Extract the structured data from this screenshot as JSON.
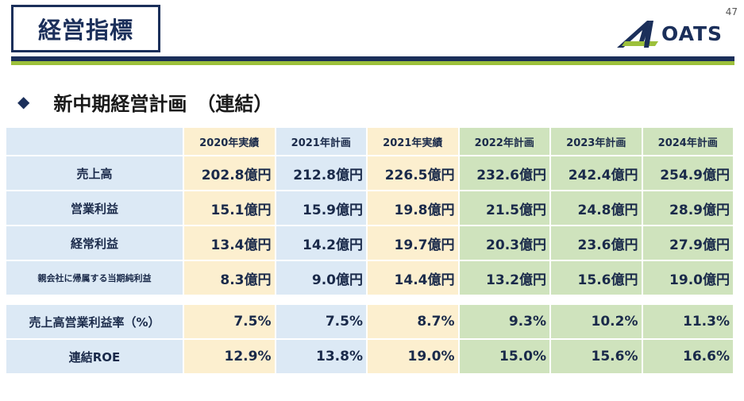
{
  "header": {
    "title": "経営指標",
    "page_number": "47",
    "logo_text": "OATS",
    "colors": {
      "navy": "#1b2f5a",
      "green": "#9cc03b"
    }
  },
  "subtitle": {
    "bullet": "◆",
    "text": "新中期経営計画　（連結）"
  },
  "table": {
    "columns": [
      "2020年実績",
      "2021年計画",
      "2021年実績",
      "2022年計画",
      "2023年計画",
      "2024年計画"
    ],
    "rows_top": [
      {
        "label": "売上高",
        "values": [
          "202.8億円",
          "212.8億円",
          "226.5億円",
          "232.6億円",
          "242.4億円",
          "254.9億円"
        ]
      },
      {
        "label": "営業利益",
        "values": [
          "15.1億円",
          "15.9億円",
          "19.8億円",
          "21.5億円",
          "24.8億円",
          "28.9億円"
        ]
      },
      {
        "label": "経常利益",
        "values": [
          "13.4億円",
          "14.2億円",
          "19.7億円",
          "20.3億円",
          "23.6億円",
          "27.9億円"
        ]
      },
      {
        "label": "親会社に帰属する当期純利益",
        "values": [
          "8.3億円",
          "9.0億円",
          "14.4億円",
          "13.2億円",
          "15.6億円",
          "19.0億円"
        ]
      }
    ],
    "rows_bottom": [
      {
        "label": "売上高営業利益率（%）",
        "values": [
          "7.5%",
          "7.5%",
          "8.7%",
          "9.3%",
          "10.2%",
          "11.3%"
        ]
      },
      {
        "label": "連結ROE",
        "values": [
          "12.9%",
          "13.8%",
          "19.0%",
          "15.0%",
          "15.6%",
          "16.6%"
        ]
      }
    ]
  }
}
